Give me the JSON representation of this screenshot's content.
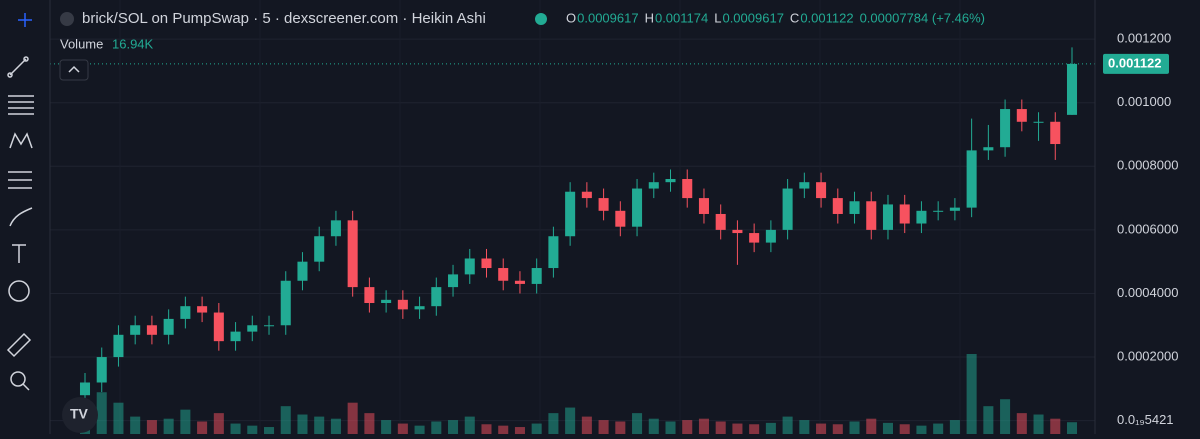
{
  "chart_data": {
    "type": "candlestick",
    "title": "brick/SOL on PumpSwap · 5 · dexscreener.com · Heikin Ashi",
    "ohlc_labels": [
      "O",
      "H",
      "L",
      "C"
    ],
    "change": "0.00007784 (+7.46%)",
    "volume_label": "Volume",
    "volume_value": "16.94K",
    "up_color": "#22ab94",
    "down_color": "#f7525f",
    "candles": [
      [
        8e-05,
        0.00015,
        5e-05,
        0.00012
      ],
      [
        0.00012,
        0.00023,
        9e-05,
        0.0002
      ],
      [
        0.0002,
        0.0003,
        0.00017,
        0.00027
      ],
      [
        0.00027,
        0.00033,
        0.00024,
        0.0003
      ],
      [
        0.0003,
        0.00033,
        0.00024,
        0.00027
      ],
      [
        0.00027,
        0.00035,
        0.00024,
        0.00032
      ],
      [
        0.00032,
        0.00039,
        0.00029,
        0.00036
      ],
      [
        0.00036,
        0.00039,
        0.00031,
        0.00034
      ],
      [
        0.00034,
        0.00037,
        0.00022,
        0.00025
      ],
      [
        0.00025,
        0.00031,
        0.00022,
        0.00028
      ],
      [
        0.00028,
        0.00033,
        0.00025,
        0.0003
      ],
      [
        0.0003,
        0.00033,
        0.00027,
        0.0003
      ],
      [
        0.0003,
        0.00047,
        0.00027,
        0.00044
      ],
      [
        0.00044,
        0.00053,
        0.00041,
        0.0005
      ],
      [
        0.0005,
        0.00061,
        0.00047,
        0.00058
      ],
      [
        0.00058,
        0.00066,
        0.00055,
        0.00063
      ],
      [
        0.00063,
        0.00066,
        0.00039,
        0.00042
      ],
      [
        0.00042,
        0.00045,
        0.00034,
        0.00037
      ],
      [
        0.00037,
        0.00041,
        0.00034,
        0.00038
      ],
      [
        0.00038,
        0.00041,
        0.00032,
        0.00035
      ],
      [
        0.00035,
        0.00039,
        0.00032,
        0.00036
      ],
      [
        0.00036,
        0.00045,
        0.00033,
        0.00042
      ],
      [
        0.00042,
        0.00049,
        0.00039,
        0.00046
      ],
      [
        0.00046,
        0.00054,
        0.00043,
        0.00051
      ],
      [
        0.00051,
        0.00054,
        0.00045,
        0.00048
      ],
      [
        0.00048,
        0.00051,
        0.00041,
        0.00044
      ],
      [
        0.00044,
        0.00047,
        0.0004,
        0.00043
      ],
      [
        0.00043,
        0.00051,
        0.0004,
        0.00048
      ],
      [
        0.00048,
        0.00061,
        0.00045,
        0.00058
      ],
      [
        0.00058,
        0.00075,
        0.00055,
        0.00072
      ],
      [
        0.00072,
        0.00075,
        0.00067,
        0.0007
      ],
      [
        0.0007,
        0.00073,
        0.00063,
        0.00066
      ],
      [
        0.00066,
        0.00069,
        0.00058,
        0.00061
      ],
      [
        0.00061,
        0.00076,
        0.00058,
        0.00073
      ],
      [
        0.00073,
        0.00078,
        0.0007,
        0.00075
      ],
      [
        0.00075,
        0.00079,
        0.00072,
        0.00076
      ],
      [
        0.00076,
        0.00079,
        0.00067,
        0.0007
      ],
      [
        0.0007,
        0.00073,
        0.00062,
        0.00065
      ],
      [
        0.00065,
        0.00068,
        0.00057,
        0.0006
      ],
      [
        0.0006,
        0.00063,
        0.00049,
        0.00059
      ],
      [
        0.00059,
        0.00062,
        0.00053,
        0.00056
      ],
      [
        0.00056,
        0.00063,
        0.00053,
        0.0006
      ],
      [
        0.0006,
        0.00076,
        0.00057,
        0.00073
      ],
      [
        0.00073,
        0.00078,
        0.0007,
        0.00075
      ],
      [
        0.00075,
        0.00078,
        0.00067,
        0.0007
      ],
      [
        0.0007,
        0.00073,
        0.00062,
        0.00065
      ],
      [
        0.00065,
        0.00072,
        0.00062,
        0.00069
      ],
      [
        0.00069,
        0.00072,
        0.00057,
        0.0006
      ],
      [
        0.0006,
        0.00071,
        0.00057,
        0.00068
      ],
      [
        0.00068,
        0.00071,
        0.00059,
        0.00062
      ],
      [
        0.00062,
        0.00069,
        0.00059,
        0.00066
      ],
      [
        0.00066,
        0.00069,
        0.00063,
        0.00066
      ],
      [
        0.00066,
        0.0007,
        0.00063,
        0.00067
      ],
      [
        0.00067,
        0.00095,
        0.00064,
        0.00085
      ],
      [
        0.00085,
        0.00093,
        0.00082,
        0.00086
      ],
      [
        0.00086,
        0.00101,
        0.00083,
        0.00098
      ],
      [
        0.00098,
        0.00101,
        0.00091,
        0.00094
      ],
      [
        0.00094,
        0.00097,
        0.00088,
        0.00094
      ],
      [
        0.00094,
        0.00097,
        0.00082,
        0.00087
      ],
      [
        0.0009617,
        0.001174,
        0.0009617,
        0.001122
      ]
    ],
    "volume": [
      30000,
      60000,
      45000,
      25000,
      20000,
      22000,
      35000,
      18000,
      30000,
      15000,
      12000,
      10000,
      40000,
      28000,
      25000,
      22000,
      45000,
      30000,
      20000,
      15000,
      12000,
      18000,
      20000,
      25000,
      14000,
      12000,
      10000,
      15000,
      30000,
      38000,
      25000,
      20000,
      18000,
      30000,
      22000,
      18000,
      20000,
      22000,
      18000,
      15000,
      14000,
      16000,
      25000,
      20000,
      15000,
      14000,
      18000,
      22000,
      16000,
      14000,
      12000,
      15000,
      20000,
      115000,
      40000,
      50000,
      30000,
      28000,
      22000,
      16940
    ],
    "ylim": [
      -4.2e-05,
      0.001323
    ],
    "yticks": [
      {
        "value": 0.0012,
        "label": "0.001200"
      },
      {
        "value": 0.001,
        "label": "0.001000"
      },
      {
        "value": 0.0008,
        "label": "0.0008000"
      },
      {
        "value": 0.0006,
        "label": "0.0006000"
      },
      {
        "value": 0.0004,
        "label": "0.0004000"
      },
      {
        "value": 0.0002,
        "label": "0.0002000"
      },
      {
        "value": 5.421e-20,
        "label": "0.0₁₉5421"
      }
    ],
    "grid": true
  }
}
